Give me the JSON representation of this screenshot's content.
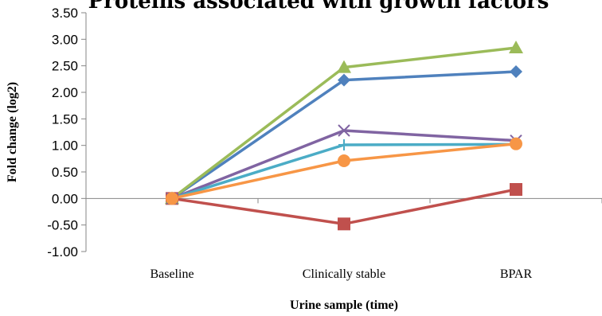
{
  "chart_data": {
    "type": "line",
    "title": "Proteins associated with growth factors",
    "xlabel": "Urine sample (time)",
    "ylabel": "Fold change (log2)",
    "categories": [
      "Baseline",
      "Clinically  stable",
      "BPAR"
    ],
    "ylim": [
      -1.0,
      3.5
    ],
    "ytick_step": 0.5,
    "grid": false,
    "legend": "none",
    "series": [
      {
        "color": "#4F81BD",
        "marker": "diamond",
        "values": [
          0,
          2.23,
          2.39
        ]
      },
      {
        "color": "#C0504D",
        "marker": "square",
        "values": [
          0,
          -0.48,
          0.17
        ]
      },
      {
        "color": "#9BBB59",
        "marker": "triangle",
        "values": [
          0,
          2.47,
          2.84
        ]
      },
      {
        "color": "#8064A2",
        "marker": "x",
        "values": [
          0,
          1.28,
          1.09
        ]
      },
      {
        "color": "#4BACC6",
        "marker": "plus",
        "values": [
          0,
          1.01,
          1.02
        ]
      },
      {
        "color": "#F79646",
        "marker": "circle",
        "values": [
          0,
          0.71,
          1.03
        ]
      }
    ]
  }
}
